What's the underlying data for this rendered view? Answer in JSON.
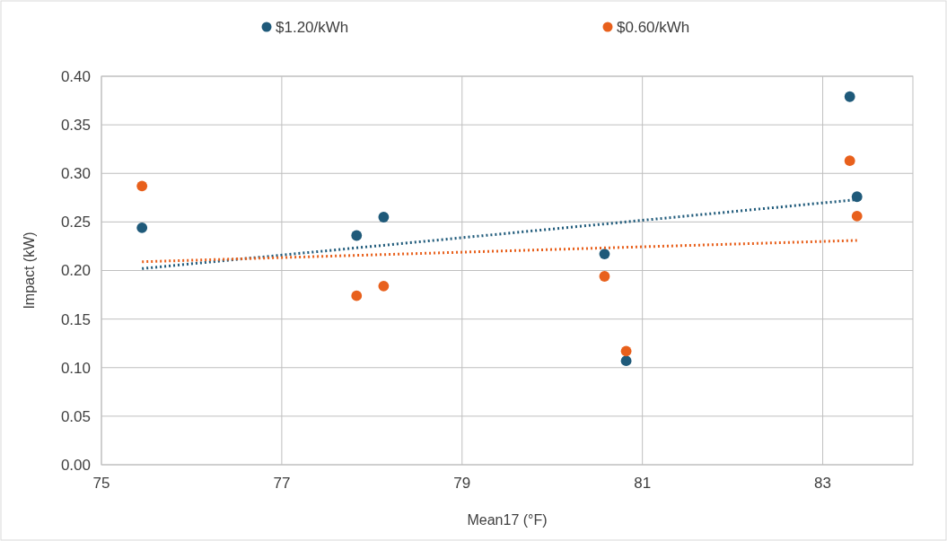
{
  "chart_data": {
    "type": "scatter",
    "xlabel": "Mean17 (°F)",
    "ylabel": "Impact (kW)",
    "xlim": [
      75,
      84
    ],
    "xticks": [
      75,
      77,
      79,
      81,
      83
    ],
    "ylim": [
      0,
      0.4
    ],
    "yticks": [
      {
        "value": 0,
        "label": "0.00"
      },
      {
        "value": 0.05,
        "label": "0.05"
      },
      {
        "value": 0.1,
        "label": "0.10"
      },
      {
        "value": 0.15,
        "label": "0.15"
      },
      {
        "value": 0.2,
        "label": "0.20"
      },
      {
        "value": 0.25,
        "label": "0.25"
      },
      {
        "value": 0.3,
        "label": "0.30"
      },
      {
        "value": 0.35,
        "label": "0.35"
      },
      {
        "value": 0.4,
        "label": "0.40"
      }
    ],
    "grid": true,
    "legend": "top",
    "marker": "circle",
    "series": [
      {
        "name": "$1.20/kWh",
        "color": "#1f5a7a",
        "x": [
          75.45,
          77.83,
          78.13,
          80.58,
          80.82,
          83.3,
          83.38
        ],
        "values": [
          0.244,
          0.236,
          0.255,
          0.217,
          0.107,
          0.379,
          0.276
        ]
      },
      {
        "name": "$0.60/kWh",
        "color": "#e8601c",
        "x": [
          75.45,
          77.83,
          78.13,
          80.58,
          80.82,
          83.3,
          83.38
        ],
        "values": [
          0.287,
          0.174,
          0.184,
          0.194,
          0.117,
          0.313,
          0.256
        ]
      },
      {
        "type": "line",
        "color": "#1f5a7a",
        "line_style": "dotted",
        "marker": "none",
        "x": [
          75.45,
          83.38
        ],
        "values": [
          0.202,
          0.273
        ]
      },
      {
        "type": "line",
        "color": "#e8601c",
        "line_style": "dotted",
        "marker": "none",
        "x": [
          75.45,
          83.38
        ],
        "values": [
          0.209,
          0.231
        ]
      }
    ]
  }
}
